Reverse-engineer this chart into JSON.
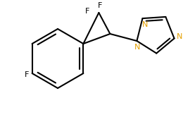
{
  "bg_color": "#ffffff",
  "line_color": "#000000",
  "N_color": "#e5a000",
  "line_width": 1.5,
  "font_size": 8,
  "figsize": [
    2.77,
    1.73
  ],
  "dpi": 100,
  "xlim": [
    0,
    277
  ],
  "ylim": [
    0,
    173
  ]
}
